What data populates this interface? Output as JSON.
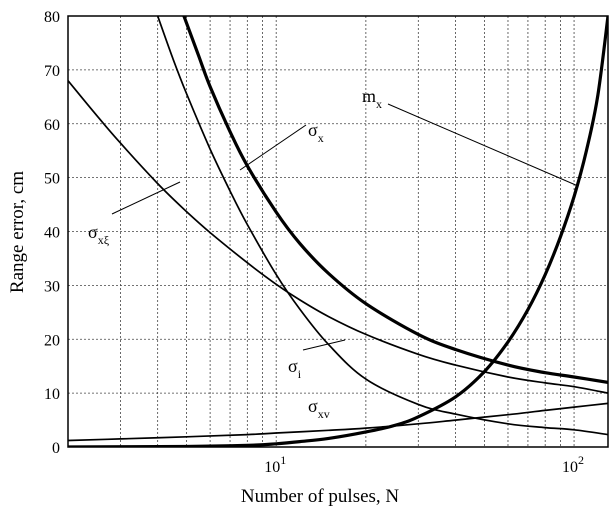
{
  "chart_data": {
    "type": "line",
    "title": "",
    "xlabel": "Number of pulses, N",
    "ylabel": "Range error, cm",
    "xscale": "log",
    "xlim": [
      2,
      130
    ],
    "ylim": [
      0,
      80
    ],
    "grid": true,
    "legend": "none",
    "xticks": [
      {
        "value": 10,
        "base": "10",
        "exp": "1"
      },
      {
        "value": 100,
        "base": "10",
        "exp": "2"
      }
    ],
    "yticks": [
      {
        "value": 0,
        "label": "0"
      },
      {
        "value": 10,
        "label": "10"
      },
      {
        "value": 20,
        "label": "20"
      },
      {
        "value": 30,
        "label": "30"
      },
      {
        "value": 40,
        "label": "40"
      },
      {
        "value": 50,
        "label": "50"
      },
      {
        "value": 60,
        "label": "60"
      },
      {
        "value": 70,
        "label": "70"
      },
      {
        "value": 80,
        "label": "80"
      }
    ],
    "series": [
      {
        "name": "σx",
        "label_main": "σ",
        "label_sub": "x",
        "bold": true,
        "x": [
          4.9,
          5.5,
          6,
          7,
          8,
          10,
          12,
          15,
          20,
          30,
          40,
          60,
          80,
          100,
          130
        ],
        "y": [
          80,
          72.5,
          66.9,
          58.5,
          52.2,
          43.6,
          37.8,
          32.2,
          26.6,
          20.9,
          18.1,
          15.2,
          13.8,
          13.0,
          12.0
        ]
      },
      {
        "name": "σi",
        "label_main": "σ",
        "label_sub": "i",
        "bold": false,
        "x": [
          4.0,
          4.5,
          5,
          6,
          7,
          8,
          10,
          12,
          15,
          20,
          30,
          40,
          60,
          80,
          100,
          130
        ],
        "y": [
          80,
          72.1,
          65.6,
          55.3,
          47.5,
          41.3,
          32.0,
          25.6,
          19.0,
          12.6,
          7.9,
          6.1,
          4.3,
          3.6,
          3.2,
          2.3
        ]
      },
      {
        "name": "σxξ",
        "label_main": "σ",
        "label_sub": "xξ",
        "bold": false,
        "x": [
          2,
          2.5,
          3,
          4,
          5,
          6,
          8,
          10,
          12,
          15,
          20,
          30,
          40,
          60,
          80,
          100,
          130
        ],
        "y": [
          68,
          61.5,
          56.4,
          48.9,
          43.7,
          39.8,
          34.2,
          30.2,
          27.3,
          24.2,
          20.9,
          17.2,
          15.2,
          13.0,
          11.9,
          11.2,
          10.0
        ]
      },
      {
        "name": "σxv",
        "label_main": "σ",
        "label_sub": "xv",
        "bold": false,
        "x": [
          2,
          3,
          5,
          8,
          10,
          15,
          20,
          30,
          40,
          60,
          80,
          100,
          130
        ],
        "y": [
          1.2,
          1.5,
          1.9,
          2.3,
          2.6,
          3.1,
          3.5,
          4.3,
          5.0,
          6.0,
          6.8,
          7.4,
          8.1
        ]
      },
      {
        "name": "mx",
        "label_main": "m",
        "label_sub": "x",
        "bold": true,
        "x": [
          2,
          5,
          8,
          10,
          12,
          15,
          20,
          25,
          30,
          40,
          50,
          60,
          70,
          80,
          90,
          100,
          110,
          120,
          130
        ],
        "y": [
          0,
          0.1,
          0.3,
          0.6,
          1.0,
          1.6,
          2.8,
          4.0,
          5.6,
          9.3,
          14.0,
          19.5,
          25.5,
          32.0,
          39.0,
          46.5,
          55.0,
          65.0,
          80
        ]
      }
    ]
  }
}
